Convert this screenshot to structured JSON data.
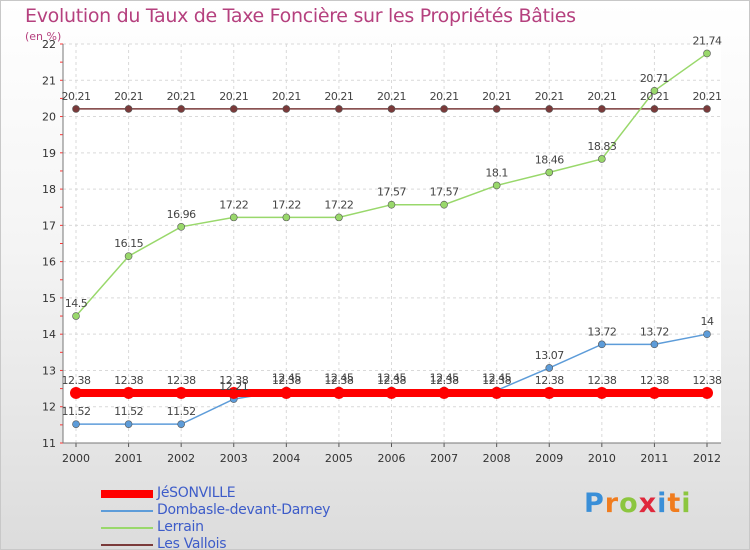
{
  "chart_data": {
    "type": "line",
    "title": "Evolution du Taux de Taxe Foncière sur les Propriétés Bâties",
    "ylabel": "(en %)",
    "xlabel": "",
    "x": [
      "2000",
      "2001",
      "2002",
      "2003",
      "2004",
      "2005",
      "2006",
      "2007",
      "2008",
      "2009",
      "2010",
      "2011",
      "2012"
    ],
    "ylim": [
      11,
      22
    ],
    "yticks": [
      "11",
      "12",
      "13",
      "14",
      "15",
      "16",
      "17",
      "18",
      "19",
      "20",
      "21",
      "22"
    ],
    "grid": true,
    "legend_position": "bottom-left",
    "series": [
      {
        "name": "JéSONVILLE",
        "color": "#ff0000",
        "values": [
          12.38,
          12.38,
          12.38,
          12.38,
          12.38,
          12.38,
          12.38,
          12.38,
          12.38,
          12.38,
          12.38,
          12.38,
          12.38
        ],
        "labels": [
          "12.38",
          "12.38",
          "12.38",
          "12.38",
          "12.38",
          "12.38",
          "12.38",
          "12.38",
          "12.38",
          "12.38",
          "12.38",
          "12.38",
          "12.38"
        ]
      },
      {
        "name": "Dombasle-devant-Darney",
        "color": "#5d9cd9",
        "values": [
          11.52,
          11.52,
          11.52,
          12.21,
          12.45,
          12.45,
          12.45,
          12.45,
          12.45,
          13.07,
          13.72,
          13.72,
          14
        ],
        "labels": [
          "11.52",
          "11.52",
          "11.52",
          "12.21",
          "12.45",
          "12.45",
          "12.45",
          "12.45",
          "12.45",
          "13.07",
          "13.72",
          "13.72",
          "14"
        ]
      },
      {
        "name": "Lerrain",
        "color": "#99d86b",
        "values": [
          14.5,
          16.15,
          16.96,
          17.22,
          17.22,
          17.22,
          17.57,
          17.57,
          18.1,
          18.46,
          18.83,
          20.71,
          21.74
        ],
        "labels": [
          "14.5",
          "16.15",
          "16.96",
          "17.22",
          "17.22",
          "17.22",
          "17.57",
          "17.57",
          "18.1",
          "18.46",
          "18.83",
          "20.71",
          "21.74"
        ]
      },
      {
        "name": "Les Vallois",
        "color": "#7a3a3a",
        "values": [
          20.21,
          20.21,
          20.21,
          20.21,
          20.21,
          20.21,
          20.21,
          20.21,
          20.21,
          20.21,
          20.21,
          20.21,
          20.21
        ],
        "labels": [
          "20.21",
          "20.21",
          "20.21",
          "20.21",
          "20.21",
          "20.21",
          "20.21",
          "20.21",
          "20.21",
          "20.21",
          "20.21",
          "20.21",
          "20.21"
        ]
      }
    ]
  },
  "logo": {
    "text": "Proxiti",
    "letter_colors": [
      "#3a8fd8",
      "#f07c1e",
      "#8cc63f",
      "#e0283c",
      "#3a8fd8",
      "#f07c1e",
      "#8cc63f"
    ]
  }
}
